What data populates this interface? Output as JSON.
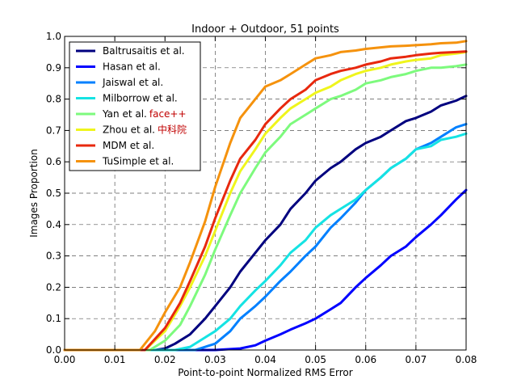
{
  "chart_data": {
    "type": "line",
    "title": "Indoor + Outdoor, 51 points",
    "xlabel": "Point-to-point Normalized RMS Error",
    "ylabel": "Images Proportion",
    "xlim": [
      0.0,
      0.08
    ],
    "ylim": [
      0.0,
      1.0
    ],
    "grid": true,
    "legend_position": "top-left",
    "xticks": [
      0.0,
      0.01,
      0.02,
      0.03,
      0.04,
      0.05,
      0.06,
      0.07,
      0.08
    ],
    "xtick_labels": [
      "0.00",
      "0.01",
      "0.02",
      "0.03",
      "0.04",
      "0.05",
      "0.06",
      "0.07",
      "0.08"
    ],
    "yticks": [
      0.0,
      0.1,
      0.2,
      0.3,
      0.4,
      0.5,
      0.6,
      0.7,
      0.8,
      0.9,
      1.0
    ],
    "ytick_labels": [
      "0.0",
      "0.1",
      "0.2",
      "0.3",
      "0.4",
      "0.5",
      "0.6",
      "0.7",
      "0.8",
      "0.9",
      "1.0"
    ],
    "series": [
      {
        "name": "Baltrusaitis et al.",
        "color": "#00007f",
        "x": [
          0.0,
          0.018,
          0.02,
          0.022,
          0.025,
          0.028,
          0.03,
          0.033,
          0.035,
          0.038,
          0.04,
          0.043,
          0.045,
          0.048,
          0.05,
          0.053,
          0.055,
          0.058,
          0.06,
          0.063,
          0.065,
          0.068,
          0.07,
          0.073,
          0.075,
          0.078,
          0.08
        ],
        "y": [
          0.0,
          0.0,
          0.005,
          0.02,
          0.05,
          0.1,
          0.14,
          0.2,
          0.25,
          0.31,
          0.35,
          0.4,
          0.45,
          0.5,
          0.54,
          0.58,
          0.6,
          0.64,
          0.66,
          0.68,
          0.7,
          0.73,
          0.74,
          0.76,
          0.78,
          0.795,
          0.81
        ]
      },
      {
        "name": "Hasan et al.",
        "color": "#0000ff",
        "x": [
          0.0,
          0.03,
          0.035,
          0.038,
          0.04,
          0.043,
          0.045,
          0.048,
          0.05,
          0.053,
          0.055,
          0.058,
          0.06,
          0.063,
          0.065,
          0.068,
          0.07,
          0.073,
          0.075,
          0.078,
          0.08
        ],
        "y": [
          0.0,
          0.0,
          0.005,
          0.015,
          0.03,
          0.05,
          0.065,
          0.085,
          0.1,
          0.13,
          0.15,
          0.2,
          0.23,
          0.27,
          0.3,
          0.33,
          0.36,
          0.4,
          0.43,
          0.48,
          0.51
        ]
      },
      {
        "name": "Jaiswal et al.",
        "color": "#0080ff",
        "x": [
          0.0,
          0.026,
          0.03,
          0.033,
          0.035,
          0.038,
          0.04,
          0.043,
          0.045,
          0.048,
          0.05,
          0.053,
          0.055,
          0.058,
          0.06,
          0.063,
          0.065,
          0.068,
          0.07,
          0.073,
          0.075,
          0.078,
          0.08
        ],
        "y": [
          0.0,
          0.0,
          0.02,
          0.06,
          0.1,
          0.14,
          0.17,
          0.22,
          0.25,
          0.3,
          0.33,
          0.39,
          0.42,
          0.47,
          0.51,
          0.55,
          0.58,
          0.61,
          0.64,
          0.66,
          0.68,
          0.71,
          0.72
        ]
      },
      {
        "name": "Milborrow et al.",
        "color": "#15e3e3",
        "x": [
          0.0,
          0.022,
          0.025,
          0.028,
          0.03,
          0.033,
          0.035,
          0.038,
          0.04,
          0.043,
          0.045,
          0.048,
          0.05,
          0.053,
          0.055,
          0.058,
          0.06,
          0.063,
          0.065,
          0.068,
          0.07,
          0.073,
          0.075,
          0.078,
          0.08
        ],
        "y": [
          0.0,
          0.0,
          0.01,
          0.04,
          0.06,
          0.1,
          0.14,
          0.19,
          0.22,
          0.27,
          0.31,
          0.35,
          0.39,
          0.43,
          0.45,
          0.48,
          0.51,
          0.55,
          0.58,
          0.61,
          0.64,
          0.65,
          0.67,
          0.68,
          0.69
        ]
      },
      {
        "name": "Yan et al.",
        "note": "face++",
        "note_color": "#c00000",
        "color": "#7dfa7d",
        "x": [
          0.0,
          0.017,
          0.02,
          0.023,
          0.025,
          0.028,
          0.03,
          0.033,
          0.035,
          0.038,
          0.04,
          0.043,
          0.045,
          0.048,
          0.05,
          0.053,
          0.055,
          0.058,
          0.06,
          0.063,
          0.065,
          0.068,
          0.07,
          0.073,
          0.075,
          0.078,
          0.08
        ],
        "y": [
          0.0,
          0.0,
          0.03,
          0.08,
          0.14,
          0.24,
          0.32,
          0.43,
          0.5,
          0.58,
          0.63,
          0.68,
          0.72,
          0.75,
          0.77,
          0.8,
          0.81,
          0.83,
          0.85,
          0.86,
          0.87,
          0.88,
          0.89,
          0.9,
          0.9,
          0.905,
          0.91
        ]
      },
      {
        "name": "Zhou et al.",
        "note": "中科院",
        "note_color": "#c00000",
        "color": "#eff51c",
        "x": [
          0.0,
          0.016,
          0.02,
          0.023,
          0.025,
          0.028,
          0.03,
          0.033,
          0.035,
          0.038,
          0.04,
          0.043,
          0.045,
          0.048,
          0.05,
          0.053,
          0.055,
          0.058,
          0.06,
          0.063,
          0.065,
          0.068,
          0.07,
          0.073,
          0.075,
          0.078,
          0.08
        ],
        "y": [
          0.0,
          0.0,
          0.06,
          0.14,
          0.2,
          0.3,
          0.38,
          0.5,
          0.57,
          0.64,
          0.69,
          0.74,
          0.77,
          0.8,
          0.82,
          0.84,
          0.86,
          0.88,
          0.89,
          0.9,
          0.91,
          0.92,
          0.925,
          0.93,
          0.94,
          0.945,
          0.95
        ]
      },
      {
        "name": "MDM et al.",
        "color": "#e8280e",
        "x": [
          0.0,
          0.016,
          0.02,
          0.023,
          0.025,
          0.028,
          0.03,
          0.033,
          0.035,
          0.038,
          0.04,
          0.043,
          0.045,
          0.048,
          0.05,
          0.053,
          0.055,
          0.058,
          0.06,
          0.063,
          0.065,
          0.068,
          0.07,
          0.073,
          0.075,
          0.078,
          0.08
        ],
        "y": [
          0.0,
          0.0,
          0.07,
          0.15,
          0.22,
          0.33,
          0.42,
          0.54,
          0.61,
          0.67,
          0.72,
          0.77,
          0.8,
          0.83,
          0.86,
          0.88,
          0.89,
          0.9,
          0.91,
          0.92,
          0.93,
          0.935,
          0.94,
          0.945,
          0.948,
          0.95,
          0.952
        ]
      },
      {
        "name": "TuSimple et al.",
        "color": "#f5920d",
        "x": [
          0.0,
          0.015,
          0.018,
          0.02,
          0.023,
          0.025,
          0.028,
          0.03,
          0.033,
          0.035,
          0.038,
          0.04,
          0.043,
          0.045,
          0.048,
          0.05,
          0.053,
          0.055,
          0.058,
          0.06,
          0.063,
          0.065,
          0.068,
          0.07,
          0.073,
          0.075,
          0.078,
          0.08
        ],
        "y": [
          0.0,
          0.0,
          0.06,
          0.12,
          0.2,
          0.28,
          0.41,
          0.52,
          0.66,
          0.74,
          0.8,
          0.84,
          0.86,
          0.88,
          0.91,
          0.93,
          0.94,
          0.95,
          0.955,
          0.96,
          0.965,
          0.968,
          0.97,
          0.972,
          0.975,
          0.978,
          0.98,
          0.985
        ]
      }
    ]
  }
}
